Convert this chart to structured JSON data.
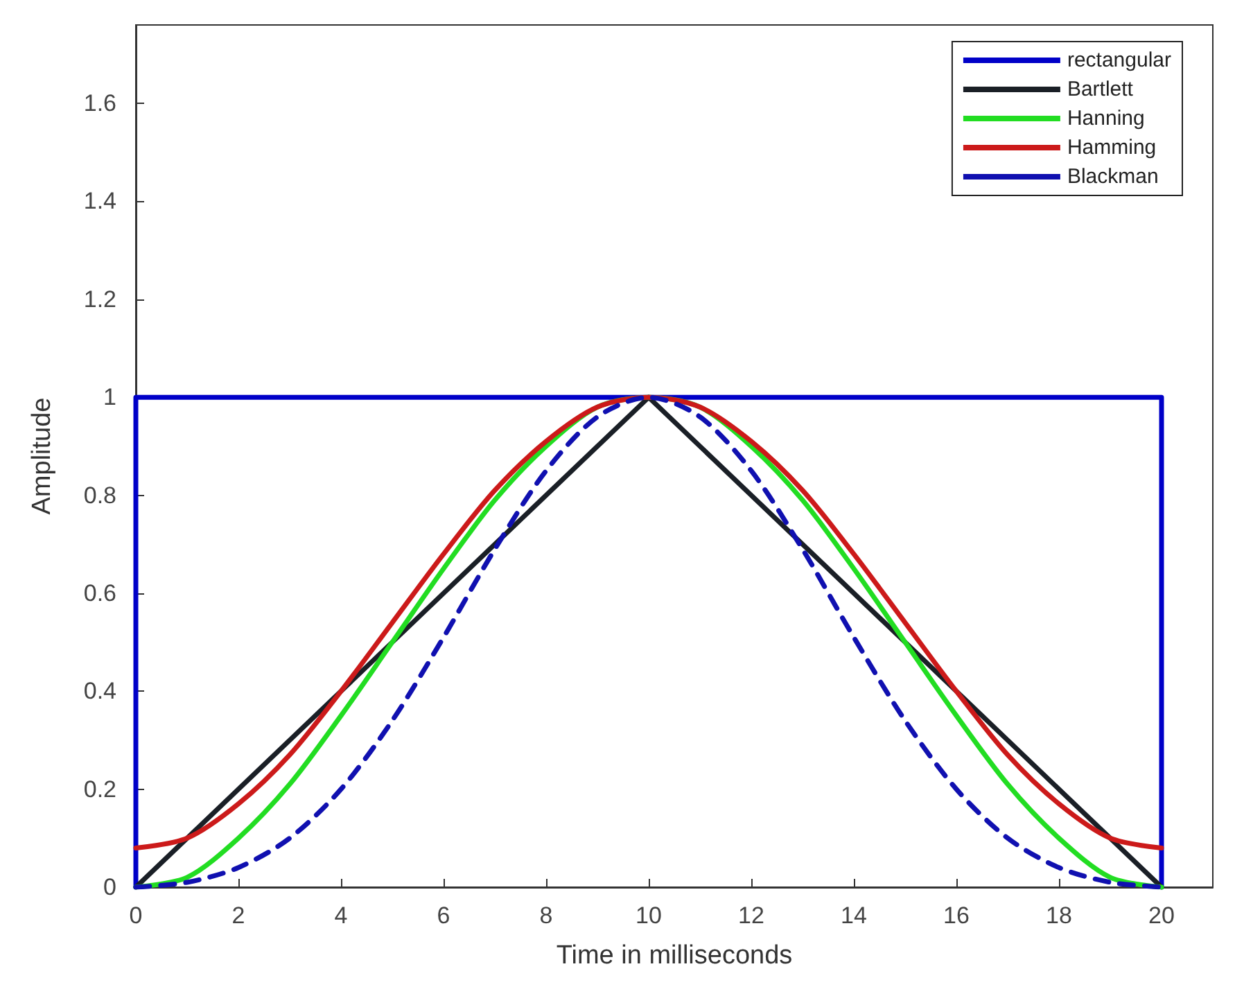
{
  "chart_data": {
    "type": "line",
    "xlabel": "Time in milliseconds",
    "ylabel": "Amplitude",
    "xlim": [
      0,
      21
    ],
    "xticks": [
      0,
      2,
      4,
      6,
      8,
      10,
      12,
      14,
      16,
      18,
      20
    ],
    "ylim": [
      0,
      1.76
    ],
    "yticks": [
      0,
      0.2,
      0.4,
      0.6,
      0.8,
      1,
      1.2,
      1.4,
      1.6
    ],
    "grid": false,
    "legend": "top right",
    "line_style": "solid",
    "marker": "none",
    "series": [
      {
        "name": "rectangular",
        "color": "#0000c8",
        "x": [
          0,
          0,
          20,
          20
        ],
        "values": [
          0,
          1,
          1,
          0
        ]
      },
      {
        "name": "Bartlett",
        "color": "#1a1f26",
        "x": [
          0,
          10,
          20
        ],
        "values": [
          0,
          1,
          0
        ]
      },
      {
        "name": "Hanning",
        "color": "#22dd22",
        "x": [
          0,
          1,
          2,
          3,
          4,
          5,
          6,
          7,
          8,
          9,
          10,
          11,
          12,
          13,
          14,
          15,
          16,
          17,
          18,
          19,
          20
        ],
        "values": [
          0,
          0.02,
          0.1,
          0.21,
          0.35,
          0.5,
          0.65,
          0.79,
          0.9,
          0.98,
          1,
          0.98,
          0.9,
          0.79,
          0.65,
          0.5,
          0.35,
          0.21,
          0.1,
          0.02,
          0
        ]
      },
      {
        "name": "Hamming",
        "color": "#cc1a1a",
        "x": [
          0,
          1,
          2,
          3,
          4,
          5,
          6,
          7,
          8,
          9,
          10,
          11,
          12,
          13,
          14,
          15,
          16,
          17,
          18,
          19,
          20
        ],
        "values": [
          0.08,
          0.1,
          0.17,
          0.27,
          0.4,
          0.54,
          0.68,
          0.81,
          0.91,
          0.98,
          1,
          0.98,
          0.91,
          0.81,
          0.68,
          0.54,
          0.4,
          0.27,
          0.17,
          0.1,
          0.08
        ]
      },
      {
        "name": "Blackman",
        "color": "#1010b0",
        "line_style": "dashed",
        "x": [
          0,
          1,
          2,
          3,
          4,
          5,
          6,
          7,
          8,
          9,
          10,
          11,
          12,
          13,
          14,
          15,
          16,
          17,
          18,
          19,
          20
        ],
        "values": [
          0,
          0.01,
          0.04,
          0.1,
          0.2,
          0.34,
          0.51,
          0.69,
          0.85,
          0.96,
          1,
          0.96,
          0.85,
          0.69,
          0.51,
          0.34,
          0.2,
          0.1,
          0.04,
          0.01,
          0
        ]
      }
    ]
  }
}
